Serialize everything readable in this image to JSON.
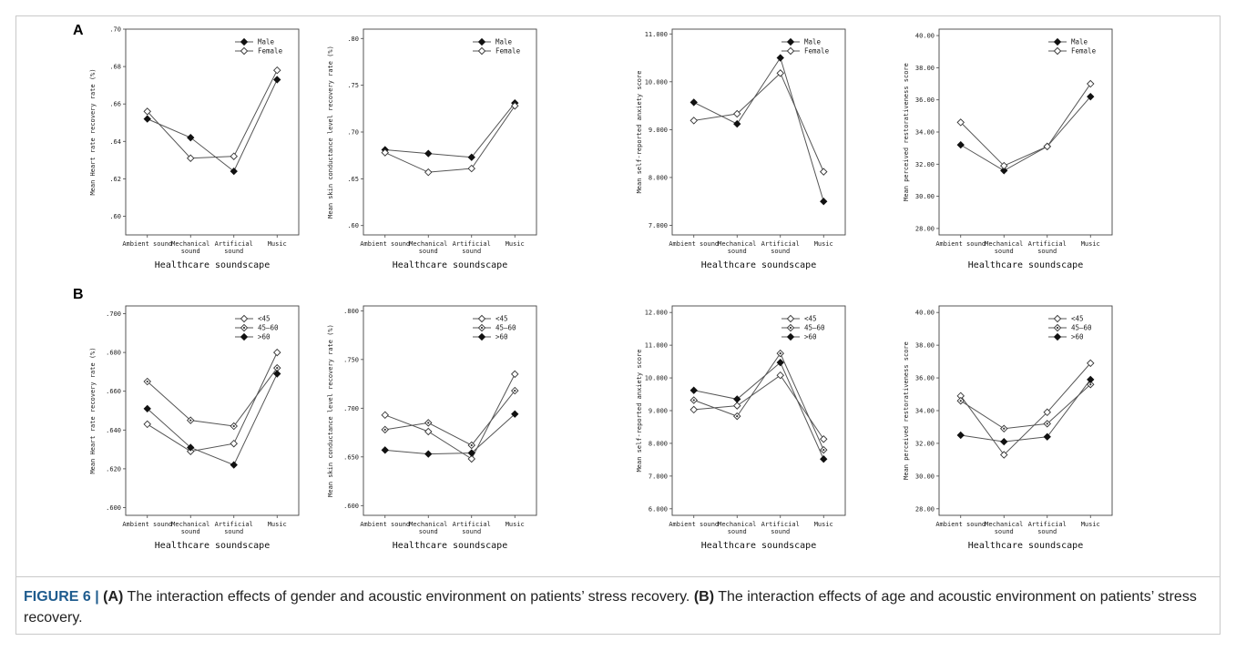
{
  "panels": {
    "a": "A",
    "b": "B"
  },
  "caption": {
    "label": "FIGURE 6 |",
    "a_tag": "(A)",
    "a_text": " The interaction effects of gender and acoustic environment on patients’ stress recovery. ",
    "b_tag": "(B)",
    "b_text": " The interaction effects of age and acoustic environment on patients’ stress recovery."
  },
  "chart_data": [
    {
      "type": "line",
      "panel": "A",
      "categories": [
        [
          "Ambient sound"
        ],
        [
          "Mechanical",
          "sound"
        ],
        [
          "Artificial",
          "sound"
        ],
        [
          "Music"
        ]
      ],
      "xlabel": "Healthcare soundscape",
      "ylabel": "Mean Heart rate recovery rate (%)",
      "ylim": [
        0.59,
        0.7
      ],
      "yticks": [
        ".60",
        ".62",
        ".64",
        ".66",
        ".68",
        ".70"
      ],
      "ytick_values": [
        0.6,
        0.62,
        0.64,
        0.66,
        0.68,
        0.7
      ],
      "series": [
        {
          "name": "Male",
          "marker": "filled",
          "values": [
            0.652,
            0.642,
            0.624,
            0.673
          ]
        },
        {
          "name": "Female",
          "marker": "open",
          "values": [
            0.656,
            0.631,
            0.632,
            0.678
          ]
        }
      ]
    },
    {
      "type": "line",
      "panel": "A",
      "categories": [
        [
          "Ambient sound"
        ],
        [
          "Mechanical",
          "sound"
        ],
        [
          "Artificial",
          "sound"
        ],
        [
          "Music"
        ]
      ],
      "xlabel": "Healthcare soundscape",
      "ylabel": "Mean skin conductance level recovery rate (%)",
      "ylim": [
        0.59,
        0.81
      ],
      "yticks": [
        ".60",
        ".65",
        ".70",
        ".75",
        ".80"
      ],
      "ytick_values": [
        0.6,
        0.65,
        0.7,
        0.75,
        0.8
      ],
      "series": [
        {
          "name": "Male",
          "marker": "filled",
          "values": [
            0.681,
            0.677,
            0.673,
            0.731
          ]
        },
        {
          "name": "Female",
          "marker": "open",
          "values": [
            0.678,
            0.657,
            0.661,
            0.728
          ]
        }
      ]
    },
    {
      "type": "line",
      "panel": "A",
      "categories": [
        [
          "Ambient sound"
        ],
        [
          "Mechanical",
          "sound"
        ],
        [
          "Artificial",
          "sound"
        ],
        [
          "Music"
        ]
      ],
      "xlabel": "Healthcare soundscape",
      "ylabel": "Mean self-reported anxiety score",
      "ylim": [
        6.8,
        11.1
      ],
      "yticks": [
        "7.000",
        "8.000",
        "9.000",
        "10.000",
        "11.000"
      ],
      "ytick_values": [
        7,
        8,
        9,
        10,
        11
      ],
      "series": [
        {
          "name": "Male",
          "marker": "filled",
          "values": [
            9.57,
            9.12,
            10.5,
            7.5
          ]
        },
        {
          "name": "Female",
          "marker": "open",
          "values": [
            9.19,
            9.33,
            10.18,
            8.12
          ]
        }
      ]
    },
    {
      "type": "line",
      "panel": "A",
      "categories": [
        [
          "Ambient sound"
        ],
        [
          "Mechanical",
          "sound"
        ],
        [
          "Artificial",
          "sound"
        ],
        [
          "Music"
        ]
      ],
      "xlabel": "Healthcare soundscape",
      "ylabel": "Mean perceived restorativeness score",
      "ylim": [
        27.6,
        40.4
      ],
      "yticks": [
        "28.00",
        "30.00",
        "32.00",
        "34.00",
        "36.00",
        "38.00",
        "40.00"
      ],
      "ytick_values": [
        28,
        30,
        32,
        34,
        36,
        38,
        40
      ],
      "series": [
        {
          "name": "Male",
          "marker": "filled",
          "values": [
            33.2,
            31.6,
            33.1,
            36.2
          ]
        },
        {
          "name": "Female",
          "marker": "open",
          "values": [
            34.6,
            31.9,
            33.1,
            37.0
          ]
        }
      ]
    },
    {
      "type": "line",
      "panel": "B",
      "categories": [
        [
          "Ambient sound"
        ],
        [
          "Mechanical",
          "sound"
        ],
        [
          "Artificial",
          "sound"
        ],
        [
          "Music"
        ]
      ],
      "xlabel": "Healthcare soundscape",
      "ylabel": "Mean Heart rate recovery rate (%)",
      "ylim": [
        0.596,
        0.704
      ],
      "yticks": [
        ".600",
        ".620",
        ".640",
        ".660",
        ".680",
        ".700"
      ],
      "ytick_values": [
        0.6,
        0.62,
        0.64,
        0.66,
        0.68,
        0.7
      ],
      "series": [
        {
          "name": "<45",
          "marker": "open",
          "values": [
            0.643,
            0.629,
            0.633,
            0.68
          ]
        },
        {
          "name": "45—60",
          "marker": "dot",
          "values": [
            0.665,
            0.645,
            0.642,
            0.672
          ]
        },
        {
          "name": ">60",
          "marker": "filled",
          "values": [
            0.651,
            0.631,
            0.622,
            0.669
          ]
        }
      ]
    },
    {
      "type": "line",
      "panel": "B",
      "categories": [
        [
          "Ambient sound"
        ],
        [
          "Mechanical",
          "sound"
        ],
        [
          "Artificial",
          "sound"
        ],
        [
          "Music"
        ]
      ],
      "xlabel": "Healthcare soundscape",
      "ylabel": "Mean skin conductance level recovery rate (%)",
      "ylim": [
        0.59,
        0.805
      ],
      "yticks": [
        ".600",
        ".650",
        ".700",
        ".750",
        ".800"
      ],
      "ytick_values": [
        0.6,
        0.65,
        0.7,
        0.75,
        0.8
      ],
      "series": [
        {
          "name": "<45",
          "marker": "open",
          "values": [
            0.693,
            0.676,
            0.648,
            0.735
          ]
        },
        {
          "name": "45—60",
          "marker": "dot",
          "values": [
            0.678,
            0.685,
            0.662,
            0.718
          ]
        },
        {
          "name": ">60",
          "marker": "filled",
          "values": [
            0.657,
            0.653,
            0.654,
            0.694
          ]
        }
      ]
    },
    {
      "type": "line",
      "panel": "B",
      "categories": [
        [
          "Ambient sound"
        ],
        [
          "Mechanical",
          "sound"
        ],
        [
          "Artificial",
          "sound"
        ],
        [
          "Music"
        ]
      ],
      "xlabel": "Healthcare soundscape",
      "ylabel": "Mean self-reported anxiety score",
      "ylim": [
        5.8,
        12.2
      ],
      "yticks": [
        "6.000",
        "7.000",
        "8.000",
        "9.000",
        "10.000",
        "11.000",
        "12.000"
      ],
      "ytick_values": [
        6,
        7,
        8,
        9,
        10,
        11,
        12
      ],
      "series": [
        {
          "name": "<45",
          "marker": "open",
          "values": [
            9.03,
            9.15,
            10.08,
            8.13
          ]
        },
        {
          "name": "45—60",
          "marker": "dot",
          "values": [
            9.32,
            8.83,
            10.75,
            7.8
          ]
        },
        {
          "name": ">60",
          "marker": "filled",
          "values": [
            9.62,
            9.35,
            10.47,
            7.52
          ]
        }
      ]
    },
    {
      "type": "line",
      "panel": "B",
      "categories": [
        [
          "Ambient sound"
        ],
        [
          "Mechanical",
          "sound"
        ],
        [
          "Artificial",
          "sound"
        ],
        [
          "Music"
        ]
      ],
      "xlabel": "Healthcare soundscape",
      "ylabel": "Mean perceived restorativeness score",
      "ylim": [
        27.6,
        40.4
      ],
      "yticks": [
        "28.00",
        "30.00",
        "32.00",
        "34.00",
        "36.00",
        "38.00",
        "40.00"
      ],
      "ytick_values": [
        28,
        30,
        32,
        34,
        36,
        38,
        40
      ],
      "series": [
        {
          "name": "<45",
          "marker": "open",
          "values": [
            34.9,
            31.3,
            33.9,
            36.9
          ]
        },
        {
          "name": "45—60",
          "marker": "dot",
          "values": [
            34.6,
            32.9,
            33.2,
            35.6
          ]
        },
        {
          "name": ">60",
          "marker": "filled",
          "values": [
            32.5,
            32.1,
            32.4,
            35.9
          ]
        }
      ]
    }
  ]
}
